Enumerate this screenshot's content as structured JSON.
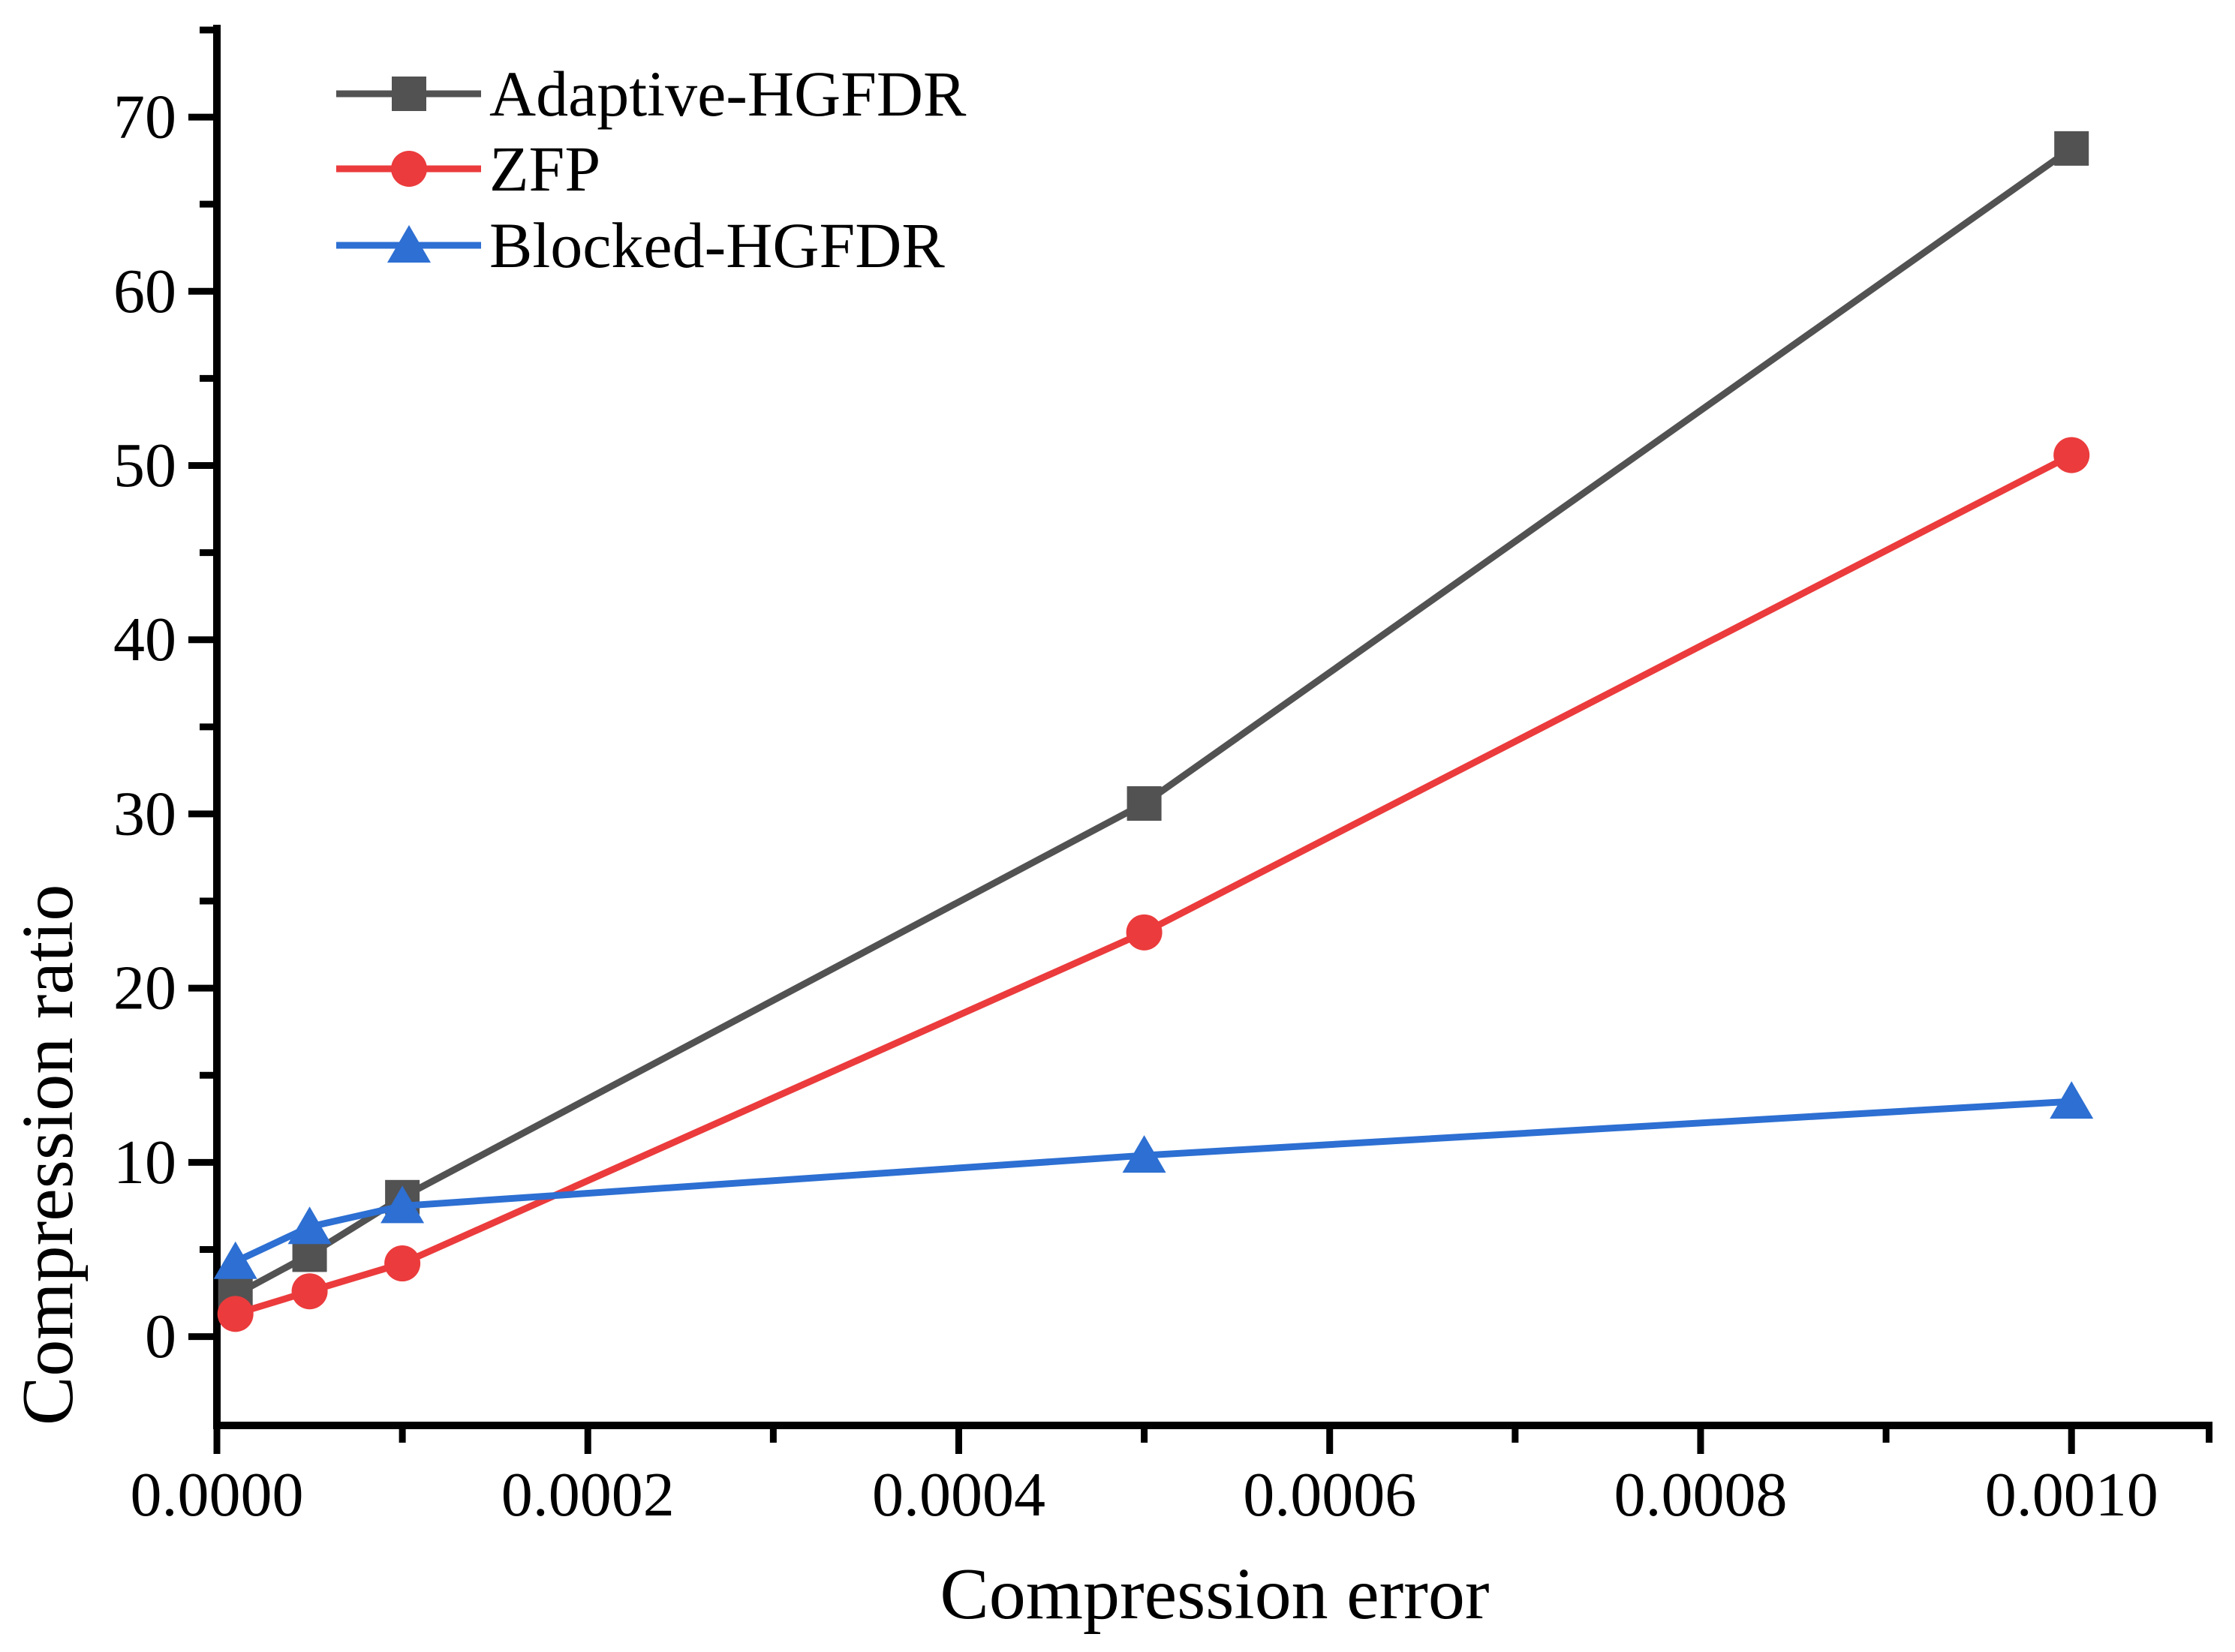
{
  "chart_data": {
    "type": "line",
    "title": "",
    "xlabel": "Compression error",
    "ylabel": "Compression ratio",
    "x": [
      1e-05,
      5e-05,
      0.0001,
      0.0005,
      0.001
    ],
    "series": [
      {
        "name": "Adaptive-HGFDR",
        "color": "#525252",
        "marker": "square",
        "values": [
          2.4,
          4.7,
          8.0,
          30.6,
          68.2
        ]
      },
      {
        "name": "ZFP",
        "color": "#eb3b3c",
        "marker": "circle",
        "values": [
          1.3,
          2.6,
          4.2,
          23.2,
          50.6
        ]
      },
      {
        "name": "Blocked-HGFDR",
        "color": "#2d6fd2",
        "marker": "triangle-up",
        "values": [
          4.3,
          6.3,
          7.5,
          10.4,
          13.5
        ]
      }
    ],
    "x_axis": {
      "min": 0,
      "max": 0.001076,
      "tick_values": [
        0,
        0.0002,
        0.0004,
        0.0006,
        0.0008,
        0.001
      ],
      "tick_labels": [
        "0.0000",
        "0.0002",
        "0.0004",
        "0.0006",
        "0.0008",
        "0.0010"
      ],
      "minor_tick_values": [
        0.0001,
        0.0003,
        0.0005,
        0.0007,
        0.0009
      ]
    },
    "y_axis": {
      "min": -5.1,
      "max": 75.3,
      "tick_values": [
        0,
        10,
        20,
        30,
        40,
        50,
        60,
        70
      ],
      "tick_labels": [
        "0",
        "10",
        "20",
        "30",
        "40",
        "50",
        "60",
        "70"
      ],
      "minor_tick_values": [
        5,
        15,
        25,
        35,
        45,
        55,
        65,
        75
      ]
    },
    "legend_position": "top-left",
    "grid": false,
    "axis_color": "#000000",
    "background": "#ffffff"
  }
}
